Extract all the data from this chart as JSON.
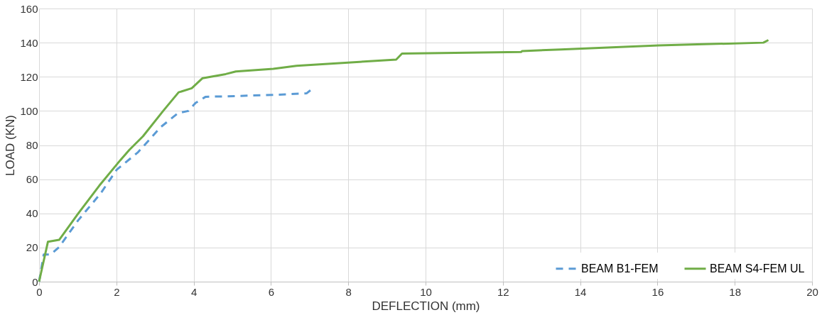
{
  "chart_data": {
    "type": "line",
    "xlabel": "DEFLECTION (mm)",
    "ylabel": "LOAD (KN)",
    "xlim": [
      0,
      20
    ],
    "xticks": [
      0,
      2,
      4,
      6,
      8,
      10,
      12,
      14,
      16,
      18,
      20
    ],
    "ylim": [
      0,
      160
    ],
    "yticks": [
      0,
      20,
      40,
      60,
      80,
      100,
      120,
      140,
      160
    ],
    "grid": true,
    "legend": "bottom right",
    "marker": "none",
    "series": [
      {
        "name": "BEAM B1-FEM",
        "color": "#5b9bd5",
        "line_style": "dashed",
        "x": [
          0,
          0.12,
          0.3,
          0.52,
          1.01,
          1.59,
          2.01,
          2.56,
          3.15,
          3.6,
          3.86,
          4.05,
          4.31,
          4.89,
          6.06,
          6.83,
          6.92,
          7.05
        ],
        "values": [
          0,
          15.9,
          15.9,
          20.3,
          35.9,
          51.6,
          65.6,
          75.8,
          90.6,
          98.8,
          100,
          104.7,
          108.3,
          108.6,
          109.4,
          110.2,
          110.3,
          112.6
        ]
      },
      {
        "name": "BEAM S4-FEM UL",
        "color": "#70ad47",
        "line_style": "solid",
        "x": [
          0,
          0.23,
          0.52,
          1.01,
          1.56,
          2.1,
          2.34,
          2.69,
          3.21,
          3.61,
          3.95,
          4.23,
          4.83,
          5.09,
          6.06,
          6.66,
          9.24,
          9.39,
          12.47,
          12.5,
          13.5,
          16.03,
          18.74,
          18.87
        ],
        "values": [
          0,
          23.4,
          24.5,
          39.8,
          56.3,
          71.1,
          77.3,
          85.2,
          100,
          110.9,
          113.3,
          119.2,
          121.6,
          123.1,
          124.7,
          126.4,
          130.1,
          133.6,
          134.5,
          135.1,
          136,
          138.4,
          140,
          141.5
        ]
      }
    ]
  }
}
